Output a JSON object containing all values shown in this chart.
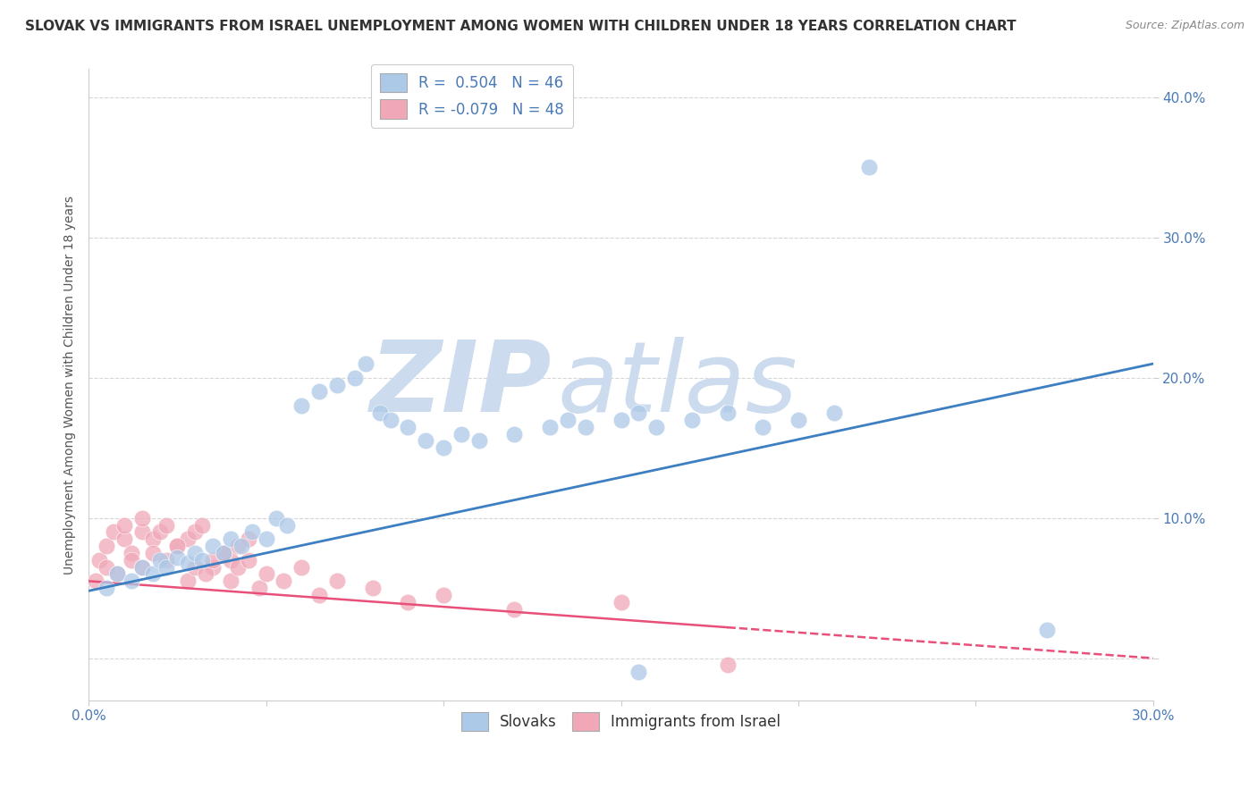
{
  "title": "SLOVAK VS IMMIGRANTS FROM ISRAEL UNEMPLOYMENT AMONG WOMEN WITH CHILDREN UNDER 18 YEARS CORRELATION CHART",
  "source": "Source: ZipAtlas.com",
  "ylabel": "Unemployment Among Women with Children Under 18 years",
  "xlim": [
    0.0,
    0.3
  ],
  "ylim": [
    -0.03,
    0.42
  ],
  "xticks": [
    0.0,
    0.05,
    0.1,
    0.15,
    0.2,
    0.25,
    0.3
  ],
  "yticks": [
    0.0,
    0.1,
    0.2,
    0.3,
    0.4
  ],
  "ytick_labels": [
    "",
    "10.0%",
    "20.0%",
    "30.0%",
    "40.0%"
  ],
  "xtick_labels": [
    "0.0%",
    "",
    "",
    "",
    "",
    "",
    "30.0%"
  ],
  "slovaks": {
    "name": "Slovaks",
    "R": 0.504,
    "N": 46,
    "color": "#adc9e8",
    "line_color": "#3d7fc1",
    "x": [
      0.005,
      0.008,
      0.012,
      0.015,
      0.018,
      0.02,
      0.022,
      0.025,
      0.028,
      0.03,
      0.032,
      0.035,
      0.038,
      0.04,
      0.043,
      0.046,
      0.05,
      0.053,
      0.056,
      0.06,
      0.065,
      0.07,
      0.075,
      0.078,
      0.082,
      0.085,
      0.09,
      0.095,
      0.1,
      0.105,
      0.11,
      0.12,
      0.13,
      0.135,
      0.14,
      0.15,
      0.155,
      0.16,
      0.17,
      0.18,
      0.19,
      0.2,
      0.21,
      0.22,
      0.155,
      0.27
    ],
    "y": [
      0.05,
      0.06,
      0.055,
      0.065,
      0.06,
      0.07,
      0.065,
      0.072,
      0.068,
      0.075,
      0.07,
      0.08,
      0.075,
      0.085,
      0.08,
      0.09,
      0.085,
      0.1,
      0.095,
      0.18,
      0.19,
      0.195,
      0.2,
      0.21,
      0.175,
      0.17,
      0.165,
      0.155,
      0.15,
      0.16,
      0.155,
      0.16,
      0.165,
      0.17,
      0.165,
      0.17,
      0.175,
      0.165,
      0.17,
      0.175,
      0.165,
      0.17,
      0.175,
      0.35,
      -0.01,
      0.02
    ],
    "trend_x": [
      0.0,
      0.3
    ],
    "trend_y": [
      0.048,
      0.21
    ]
  },
  "immigrants": {
    "name": "Immigrants from Israel",
    "R": -0.079,
    "N": 48,
    "color": "#f0a8b8",
    "line_color": "#e8507a",
    "x": [
      0.003,
      0.005,
      0.007,
      0.01,
      0.01,
      0.012,
      0.015,
      0.015,
      0.018,
      0.02,
      0.022,
      0.025,
      0.028,
      0.03,
      0.032,
      0.035,
      0.038,
      0.04,
      0.042,
      0.045,
      0.002,
      0.005,
      0.008,
      0.012,
      0.015,
      0.018,
      0.022,
      0.025,
      0.028,
      0.03,
      0.033,
      0.035,
      0.038,
      0.04,
      0.042,
      0.045,
      0.048,
      0.05,
      0.055,
      0.06,
      0.065,
      0.07,
      0.08,
      0.09,
      0.1,
      0.12,
      0.15,
      0.18
    ],
    "y": [
      0.07,
      0.08,
      0.09,
      0.085,
      0.095,
      0.075,
      0.09,
      0.1,
      0.085,
      0.09,
      0.095,
      0.08,
      0.085,
      0.09,
      0.095,
      0.065,
      0.075,
      0.07,
      0.08,
      0.085,
      0.055,
      0.065,
      0.06,
      0.07,
      0.065,
      0.075,
      0.07,
      0.08,
      0.055,
      0.065,
      0.06,
      0.07,
      0.075,
      0.055,
      0.065,
      0.07,
      0.05,
      0.06,
      0.055,
      0.065,
      0.045,
      0.055,
      0.05,
      0.04,
      0.045,
      0.035,
      0.04,
      -0.005
    ],
    "trend_x": [
      0.0,
      0.3
    ],
    "trend_y": [
      0.055,
      0.0
    ]
  },
  "watermark_zip": "ZIP",
  "watermark_atlas": "atlas",
  "watermark_color": "#ccdcee",
  "background_color": "#ffffff",
  "grid_color": "#cccccc",
  "title_color": "#333333",
  "axis_color": "#555555",
  "tick_color": "#4a7ab5",
  "title_fontsize": 11,
  "axis_label_fontsize": 10,
  "tick_fontsize": 11,
  "legend_fontsize": 12
}
